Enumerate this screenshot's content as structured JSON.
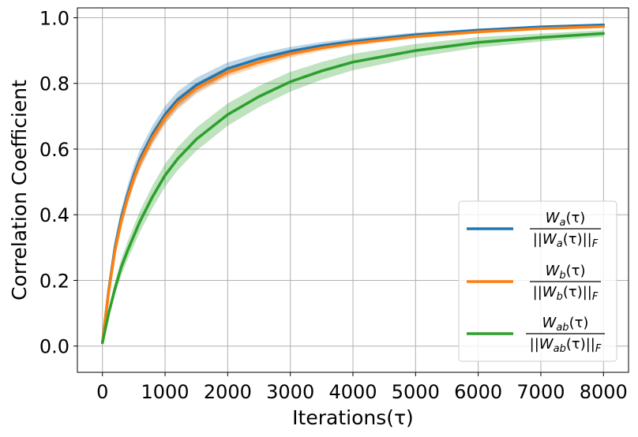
{
  "chart_data": {
    "type": "line",
    "xlabel": "Iterations(τ)",
    "ylabel": "Correlation Coefficient",
    "xlim": [
      -400,
      8400
    ],
    "ylim": [
      -0.08,
      1.03
    ],
    "xticks": [
      0,
      1000,
      2000,
      3000,
      4000,
      5000,
      6000,
      7000,
      8000
    ],
    "xtick_labels": [
      "0",
      "1000",
      "2000",
      "3000",
      "4000",
      "5000",
      "6000",
      "7000",
      "8000"
    ],
    "yticks": [
      0.0,
      0.2,
      0.4,
      0.6,
      0.8,
      1.0
    ],
    "ytick_labels": [
      "0.0",
      "0.2",
      "0.4",
      "0.6",
      "0.8",
      "1.0"
    ],
    "grid": true,
    "legend_position": "lower-right",
    "x": [
      0,
      100,
      200,
      300,
      400,
      500,
      600,
      800,
      1000,
      1200,
      1500,
      2000,
      2500,
      3000,
      3500,
      4000,
      5000,
      6000,
      7000,
      8000
    ],
    "series": [
      {
        "name": "Wa(τ) / ||Wa(τ)||F",
        "legend": {
          "num_main": "W",
          "num_sub": "a",
          "den_sub": "a"
        },
        "color": "#1f77b4",
        "values": [
          0.01,
          0.17,
          0.3,
          0.39,
          0.46,
          0.52,
          0.57,
          0.645,
          0.705,
          0.75,
          0.795,
          0.845,
          0.875,
          0.898,
          0.915,
          0.928,
          0.948,
          0.962,
          0.972,
          0.978
        ],
        "band_halfwidth": [
          0.0,
          0.02,
          0.025,
          0.027,
          0.028,
          0.028,
          0.028,
          0.027,
          0.026,
          0.025,
          0.022,
          0.019,
          0.016,
          0.013,
          0.011,
          0.009,
          0.007,
          0.005,
          0.004,
          0.003
        ]
      },
      {
        "name": "Wb(τ) / ||Wb(τ)||F",
        "legend": {
          "num_main": "W",
          "num_sub": "b",
          "den_sub": "b"
        },
        "color": "#ff7f0e",
        "values": [
          0.01,
          0.165,
          0.29,
          0.38,
          0.45,
          0.51,
          0.56,
          0.635,
          0.695,
          0.74,
          0.785,
          0.835,
          0.865,
          0.89,
          0.908,
          0.922,
          0.943,
          0.957,
          0.967,
          0.973
        ],
        "band_halfwidth": [
          0.0,
          0.015,
          0.02,
          0.022,
          0.022,
          0.022,
          0.022,
          0.021,
          0.02,
          0.019,
          0.017,
          0.015,
          0.013,
          0.011,
          0.009,
          0.008,
          0.006,
          0.005,
          0.004,
          0.003
        ]
      },
      {
        "name": "Wab(τ) / ||Wab(τ)||F",
        "legend": {
          "num_main": "W",
          "num_sub": "ab",
          "den_sub": "ab"
        },
        "color": "#2ca02c",
        "values": [
          0.01,
          0.1,
          0.175,
          0.24,
          0.29,
          0.335,
          0.38,
          0.455,
          0.52,
          0.57,
          0.63,
          0.705,
          0.76,
          0.805,
          0.838,
          0.865,
          0.9,
          0.925,
          0.94,
          0.952
        ],
        "band_halfwidth": [
          0.0,
          0.015,
          0.02,
          0.025,
          0.028,
          0.03,
          0.032,
          0.034,
          0.035,
          0.035,
          0.035,
          0.034,
          0.032,
          0.03,
          0.027,
          0.025,
          0.02,
          0.016,
          0.012,
          0.01
        ]
      }
    ]
  }
}
